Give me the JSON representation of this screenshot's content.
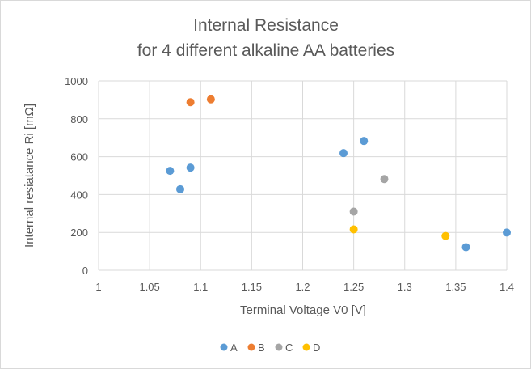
{
  "chart_data": {
    "type": "scatter",
    "title_lines": [
      "Internal Resistance",
      "for 4 different alkaline AA batteries"
    ],
    "xlabel": "Terminal Voltage V0 [V]",
    "ylabel": "Internal resiatance Ri [mΩ]",
    "xlim": [
      1,
      1.4
    ],
    "ylim": [
      0,
      1000
    ],
    "x_ticks": [
      "1",
      "1.05",
      "1.1",
      "1.15",
      "1.2",
      "1.25",
      "1.3",
      "1.35",
      "1.4"
    ],
    "y_ticks": [
      "0",
      "200",
      "400",
      "600",
      "800",
      "1000"
    ],
    "grid": true,
    "legend_position": "bottom",
    "series": [
      {
        "name": "A",
        "color": "#5b9bd5",
        "points": [
          {
            "x": 1.07,
            "y": 525
          },
          {
            "x": 1.08,
            "y": 428
          },
          {
            "x": 1.09,
            "y": 542
          },
          {
            "x": 1.24,
            "y": 619
          },
          {
            "x": 1.26,
            "y": 683
          },
          {
            "x": 1.36,
            "y": 122
          },
          {
            "x": 1.4,
            "y": 199
          }
        ]
      },
      {
        "name": "B",
        "color": "#ed7d31",
        "points": [
          {
            "x": 1.09,
            "y": 888
          },
          {
            "x": 1.11,
            "y": 903
          }
        ]
      },
      {
        "name": "C",
        "color": "#a5a5a5",
        "points": [
          {
            "x": 1.25,
            "y": 310
          },
          {
            "x": 1.28,
            "y": 482
          }
        ]
      },
      {
        "name": "D",
        "color": "#ffc000",
        "points": [
          {
            "x": 1.25,
            "y": 216
          },
          {
            "x": 1.34,
            "y": 181
          }
        ]
      }
    ]
  }
}
